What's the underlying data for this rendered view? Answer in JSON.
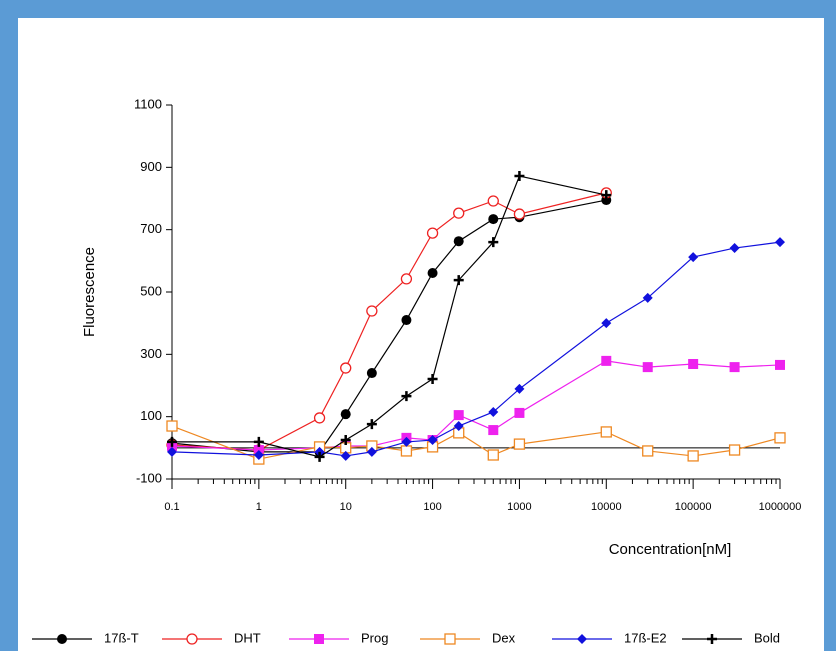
{
  "chart_data": {
    "type": "line",
    "y_label": "Fluorescence",
    "x_label": "Concentration[nM]",
    "x": [
      0.1,
      1,
      5,
      10,
      20,
      50,
      100,
      200,
      500,
      1000,
      10000,
      30000,
      100000,
      300000,
      1000000
    ],
    "xlim": [
      0.1,
      1000000
    ],
    "xticks": [
      0.1,
      1,
      10,
      100,
      1000,
      10000,
      100000,
      1000000
    ],
    "log_x": true,
    "ylim": [
      -100,
      1100
    ],
    "yticks": [
      -100,
      100,
      300,
      500,
      700,
      900,
      1100
    ],
    "reference_line": 0,
    "series": [
      {
        "name": "17ß-T",
        "color": "#000000",
        "marker": "circle-filled",
        "values": [
          15,
          -13,
          -13,
          108,
          240,
          410,
          561,
          663,
          734,
          740,
          795,
          null,
          null,
          null,
          null
        ]
      },
      {
        "name": "DHT",
        "color": "#ee2222",
        "marker": "circle-open",
        "values": [
          9,
          -7,
          96,
          256,
          439,
          542,
          689,
          753,
          792,
          750,
          818,
          null,
          null,
          null,
          null
        ]
      },
      {
        "name": "Prog",
        "color": "#ee22ee",
        "marker": "square-filled",
        "values": [
          6,
          -7,
          0,
          6,
          6,
          32,
          25,
          105,
          57,
          112,
          279,
          259,
          269,
          259,
          266
        ]
      },
      {
        "name": "Dex",
        "color": "#ee8822",
        "marker": "square-open",
        "values": [
          70,
          -36,
          3,
          0,
          6,
          -10,
          3,
          48,
          -23,
          12,
          51,
          -10,
          -26,
          -7,
          32
        ]
      },
      {
        "name": "17ß-E2",
        "color": "#1111dd",
        "marker": "diamond-filled",
        "values": [
          -13,
          -23,
          -13,
          -26,
          -13,
          19,
          25,
          70,
          115,
          189,
          400,
          481,
          612,
          641,
          660
        ]
      },
      {
        "name": "Bold",
        "color": "#000000",
        "marker": "plus",
        "values": [
          19,
          19,
          -29,
          25,
          76,
          166,
          221,
          538,
          660,
          872,
          811,
          null,
          null,
          null,
          null
        ]
      }
    ]
  }
}
